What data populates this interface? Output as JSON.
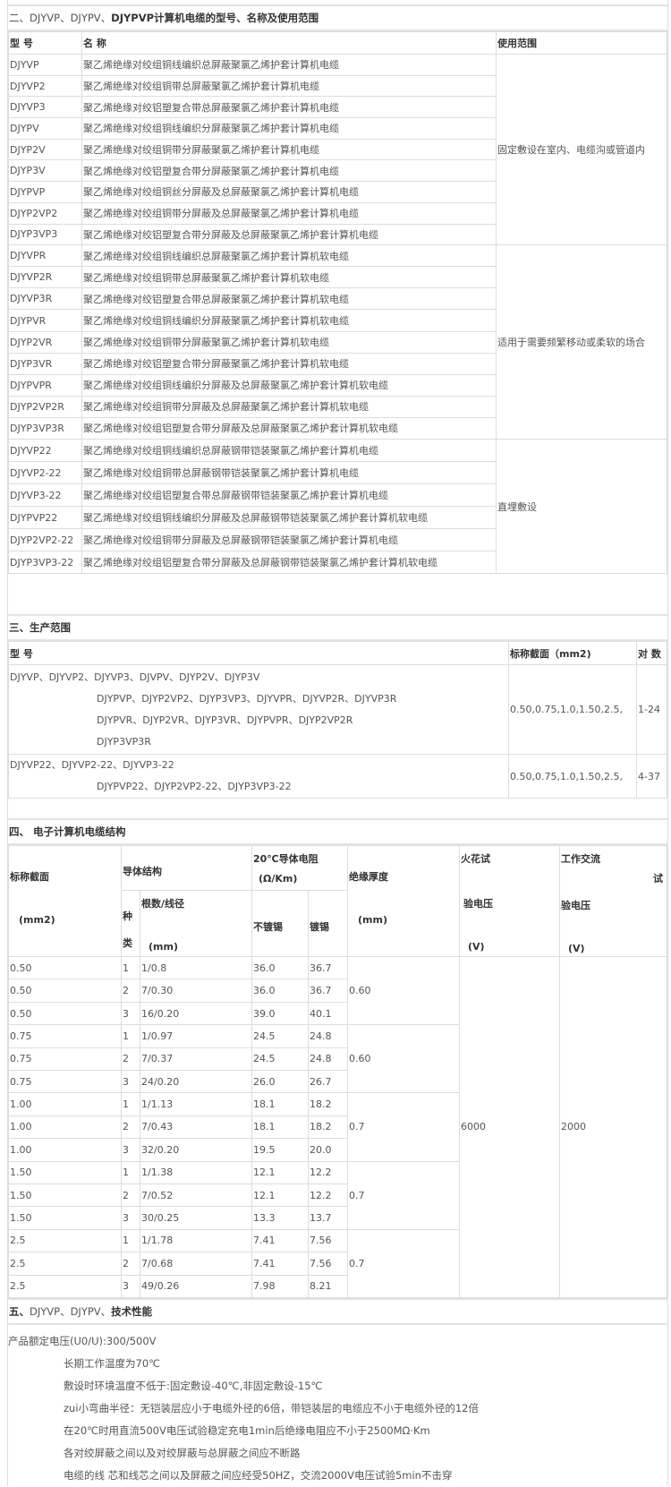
{
  "section2": {
    "title_plain": "二、DJYVP、DJYPV、",
    "title_bold": "DJYPVP计算机电缆的型号、名称及使用范围",
    "headers": [
      "型 号",
      "名 称",
      "使用范围"
    ],
    "groups": [
      {
        "range": "固定敷设在室内、电缆沟或管道内",
        "rows": [
          [
            "DJYVP",
            "聚乙烯绝缘对绞组铜线编织总屏蔽聚氯乙烯护套计算机电缆"
          ],
          [
            "DJYVP2",
            "聚乙烯绝缘对绞组铜带总屏蔽聚氯乙烯护套计算机电缆"
          ],
          [
            "DJYVP3",
            "聚乙烯绝缘对绞铝塑复合带总屏蔽聚氯乙烯护套计算机电缆"
          ],
          [
            "DJYPV",
            "聚乙烯绝缘对绞组铜线编织分屏蔽聚氯乙烯护套计算机电缆"
          ],
          [
            "DJYP2V",
            "聚乙烯绝缘对绞组铜带分屏蔽聚氯乙烯护套计算机电缆"
          ],
          [
            "DJYP3V",
            "聚乙烯绝缘对绞铝塑复合带分屏蔽聚氯乙烯护套计算机电缆"
          ],
          [
            "DJYPVP",
            "聚乙烯绝缘对绞组铜丝分屏蔽及总屏蔽聚氯乙烯护套计算机电缆"
          ],
          [
            "DJYP2VP2",
            "聚乙烯绝缘对绞组铜带分屏蔽及总屏蔽聚氯乙烯护套计算机电缆"
          ],
          [
            "DJYP3VP3",
            "聚乙烯绝缘对绞铝塑复合带分屏蔽及总屏蔽聚氯乙烯护套计算机电缆"
          ]
        ]
      },
      {
        "range": "适用于需要频繁移动或柔软的场合",
        "rows": [
          [
            "DJYVPR",
            "聚乙烯绝缘对绞组铜线编织总屏蔽聚氯乙烯护套计算机软电缆"
          ],
          [
            "DJYVP2R",
            "聚乙烯绝缘对绞组铜带总屏蔽聚氯乙烯护套计算机软电缆"
          ],
          [
            "DJYVP3R",
            "聚乙烯绝缘对绞铝塑复合带总屏蔽聚氯乙烯护套计算机软电缆"
          ],
          [
            "DJYPVR",
            "聚乙烯绝缘对绞组铜线编织分屏蔽聚氯乙烯护套计算机软电缆"
          ],
          [
            "DJYP2VR",
            "聚乙烯绝缘对绞组铜带分屏蔽聚氯乙烯护套计算机软电缆"
          ],
          [
            "DJYP3VR",
            "聚乙烯绝缘对绞铝塑复合带分屏蔽聚氯乙烯护套计算机软电缆"
          ],
          [
            "DJYPVPR",
            "聚乙烯绝缘对绞组铜线编织分屏蔽及总屏蔽聚氯乙烯护套计算机软电缆"
          ],
          [
            "DJYP2VP2R",
            "聚乙烯绝缘对绞组铜带分屏蔽及总屏蔽聚氯乙烯护套计算机软电缆"
          ],
          [
            "DJYP3VP3R",
            "聚乙烯绝缘对绞组铝塑复合带分屏蔽及总屏蔽聚氯乙烯护套计算机软电缆"
          ]
        ]
      },
      {
        "range": "直埋敷设",
        "rows": [
          [
            "DJYVP22",
            "聚乙烯绝缘对绞组铜线编织总屏蔽钢带铠装聚氯乙烯护套计算机电缆"
          ],
          [
            "DJYVP2-22",
            "聚乙烯绝缘对绞组铜带总屏蔽钢带铠装聚氯乙烯护套计算机电缆"
          ],
          [
            "DJYVP3-22",
            "聚乙烯绝缘对绞组铝塑复合带总屏蔽钢带铠装聚氯乙烯护套计算机电缆"
          ],
          [
            "DJYPVP22",
            "聚乙烯绝缘对绞组铜线编织分屏蔽及总屏蔽钢带铠装聚氯乙烯护套计算机软电缆"
          ],
          [
            "DJYP2VP2-22",
            "聚乙烯绝缘对绞组铜带分屏蔽及总屏蔽钢带铠装聚氯乙烯护套计算机电缆"
          ],
          [
            "DJYP3VP3-22",
            "聚乙烯绝缘对绞组铝塑复合带分屏蔽及总屏蔽钢带铠装聚氯乙烯护套计算机软电缆"
          ]
        ]
      }
    ]
  },
  "section3": {
    "title": "三、生产范围",
    "headers": [
      "型 号",
      "标称截面（mm2)",
      "对 数"
    ],
    "rows": [
      {
        "models": [
          "DJYVP、DJYVP2、DJYVP3、DJVPV、DJYP2V、DJYP3V",
          "DJYPVP、DJYP2VP2、DJYP3VP3、DJYVPR、DJYVP2R、DJYVP3R",
          "DJYPVR、DJYP2VR、DJYP3VR、DJYPVPR、DJYP2VP2R",
          "DJYP3VP3R"
        ],
        "section": "0.50,0.75,1.0,1.50,2.5,",
        "pairs": "1-24"
      },
      {
        "models": [
          "DJYVP22、DJYVP2-22、DJYVP3-22",
          "DJYPVP22、DJYP2VP2-22、DJYP3VP3-22"
        ],
        "section": "0.50,0.75,1.0,1.50,2.5,",
        "pairs": "4-37"
      }
    ]
  },
  "section4": {
    "title": "四、 电子计算机电缆结构",
    "headers": {
      "nominal": "标称截面",
      "nominal_unit": "(mm2)",
      "conductor": "导体结构",
      "kind_1": "种",
      "kind_2": "类",
      "strands": "根数/线径",
      "strands_unit": "(mm)",
      "resistance": "20℃导体电阻",
      "resistance_unit": "(Ω/Km)",
      "bare": "不镀锡",
      "tinned": "镀锡",
      "insulation": "绝缘厚度",
      "insulation_unit": "(mm)",
      "spark_1": "火花试",
      "spark_2": "验电压",
      "spark_unit": "(V)",
      "ac_1": "工作交流",
      "ac_x": "试",
      "ac_2": "验电压",
      "ac_unit": "(V)"
    },
    "spark_voltage": "6000",
    "ac_voltage": "2000",
    "groups": [
      {
        "insulation": "0.60",
        "rows": [
          [
            "0.50",
            "1",
            "1/0.8",
            "36.0",
            "36.7"
          ],
          [
            "0.50",
            "2",
            "7/0.30",
            "36.0",
            "36.7"
          ],
          [
            "0.50",
            "3",
            "16/0.20",
            "39.0",
            "40.1"
          ]
        ]
      },
      {
        "insulation": "0.60",
        "rows": [
          [
            "0.75",
            "1",
            "1/0.97",
            "24.5",
            "24.8"
          ],
          [
            "0.75",
            "2",
            "7/0.37",
            "24.5",
            "24.8"
          ],
          [
            "0.75",
            "3",
            "24/0.20",
            "26.0",
            "26.7"
          ]
        ]
      },
      {
        "insulation": "0.7",
        "rows": [
          [
            "1.00",
            "1",
            "1/1.13",
            "18.1",
            "18.2"
          ],
          [
            "1.00",
            "2",
            "7/0.43",
            "18.1",
            "18.2"
          ],
          [
            "1.00",
            "3",
            "32/0.20",
            "19.5",
            "20.0"
          ]
        ]
      },
      {
        "insulation": "0.7",
        "rows": [
          [
            "1.50",
            "1",
            "1/1.38",
            "12.1",
            "12.2"
          ],
          [
            "1.50",
            "2",
            "7/0.52",
            "12.1",
            "12.2"
          ],
          [
            "1.50",
            "3",
            "30/0.25",
            "13.3",
            "13.7"
          ]
        ]
      },
      {
        "insulation": "0.7",
        "rows": [
          [
            "2.5",
            "1",
            "1/1.78",
            "7.41",
            "7.56"
          ],
          [
            "2.5",
            "2",
            "7/0.68",
            "7.41",
            "7.56"
          ],
          [
            "2.5",
            "3",
            "49/0.26",
            "7.98",
            "8.21"
          ]
        ]
      }
    ]
  },
  "section5": {
    "title_bold_1": "五、",
    "title_plain": "DJYVP、DJYPV、",
    "title_bold_2": "技术性能",
    "lines": [
      "产品额定电压(U0/U):300/500V",
      "长期工作温度为70℃",
      "敷设时环境温度不低于:固定敷设-40℃,非固定敷设-15℃",
      "zui小弯曲半径：无铠装层应小于电缆外径的6倍，带铠装层的电缆应不小于电缆外径的12倍",
      "在20℃时用直流500V电压试验稳定充电1min后绝缘电阻应不小于2500MΩ·Km",
      "各对绞屏蔽之间以及对绞屏蔽与总屏蔽之间应不断路",
      "电缆的线  芯和线芯之间以及屏蔽之间应经受50HZ，交流2000V电压试验5min不击穿"
    ]
  }
}
